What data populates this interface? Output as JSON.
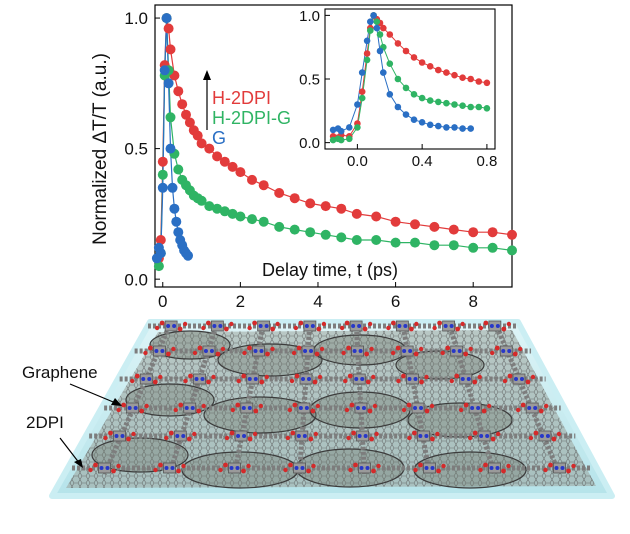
{
  "chart_data": [
    {
      "type": "scatter",
      "title": "",
      "xlabel": "Delay time, t (ps)",
      "ylabel": "Normalized ΔT/T (a.u.)",
      "xlim": [
        -0.2,
        9
      ],
      "ylim": [
        -0.03,
        1.05
      ],
      "xticks": [
        "0",
        "2",
        "4",
        "6",
        "8"
      ],
      "yticks": [
        "0.0",
        "0.5",
        "1.0"
      ],
      "legend": [
        "H-2DPI",
        "H-2DPI-G",
        "G"
      ],
      "legend_placement": "top-left, with upward arrow",
      "grid": false,
      "colors": {
        "H-2DPI": "#e23b3b",
        "H-2DPI-G": "#2fb464",
        "G": "#2a6fc4"
      },
      "series": [
        {
          "name": "H-2DPI",
          "color": "#e23b3b",
          "x": [
            -0.1,
            -0.05,
            0.0,
            0.05,
            0.1,
            0.15,
            0.2,
            0.3,
            0.4,
            0.5,
            0.6,
            0.7,
            0.8,
            0.9,
            1.0,
            1.2,
            1.4,
            1.6,
            1.8,
            2.0,
            2.3,
            2.6,
            3.0,
            3.4,
            3.8,
            4.2,
            4.6,
            5.0,
            5.5,
            6.0,
            6.5,
            7.0,
            7.5,
            8.0,
            8.5,
            9.0
          ],
          "y": [
            0.08,
            0.15,
            0.45,
            0.82,
            1.0,
            0.96,
            0.88,
            0.78,
            0.72,
            0.67,
            0.63,
            0.6,
            0.57,
            0.55,
            0.52,
            0.5,
            0.47,
            0.45,
            0.43,
            0.41,
            0.38,
            0.36,
            0.33,
            0.31,
            0.29,
            0.28,
            0.27,
            0.25,
            0.24,
            0.22,
            0.21,
            0.2,
            0.19,
            0.18,
            0.18,
            0.17
          ]
        },
        {
          "name": "H-2DPI-G",
          "color": "#2fb464",
          "x": [
            -0.1,
            -0.05,
            0.0,
            0.05,
            0.1,
            0.15,
            0.2,
            0.3,
            0.4,
            0.5,
            0.6,
            0.7,
            0.8,
            0.9,
            1.0,
            1.2,
            1.4,
            1.6,
            1.8,
            2.0,
            2.3,
            2.6,
            3.0,
            3.4,
            3.8,
            4.2,
            4.6,
            5.0,
            5.5,
            6.0,
            6.5,
            7.0,
            7.5,
            8.0,
            8.5,
            9.0
          ],
          "y": [
            0.05,
            0.1,
            0.4,
            0.78,
            1.0,
            0.8,
            0.62,
            0.48,
            0.42,
            0.38,
            0.36,
            0.34,
            0.32,
            0.31,
            0.3,
            0.28,
            0.27,
            0.26,
            0.25,
            0.24,
            0.23,
            0.22,
            0.2,
            0.19,
            0.18,
            0.17,
            0.16,
            0.15,
            0.15,
            0.14,
            0.14,
            0.13,
            0.13,
            0.12,
            0.12,
            0.11
          ]
        },
        {
          "name": "G",
          "color": "#2a6fc4",
          "x": [
            -0.15,
            -0.1,
            -0.05,
            0.0,
            0.05,
            0.1,
            0.15,
            0.2,
            0.25,
            0.3,
            0.35,
            0.4,
            0.45,
            0.5,
            0.55,
            0.6,
            0.65
          ],
          "y": [
            0.08,
            0.12,
            0.1,
            0.35,
            0.8,
            1.0,
            0.75,
            0.5,
            0.35,
            0.27,
            0.22,
            0.18,
            0.15,
            0.13,
            0.11,
            0.1,
            0.09
          ]
        }
      ]
    },
    {
      "type": "scatter",
      "title": "",
      "xlabel": "",
      "ylabel": "",
      "xlim": [
        -0.2,
        0.85
      ],
      "ylim": [
        -0.05,
        1.05
      ],
      "xticks": [
        "0.0",
        "0.4",
        "0.8"
      ],
      "yticks": [
        "0.0",
        "0.5",
        "1.0"
      ],
      "grid": false,
      "series": [
        {
          "name": "H-2DPI",
          "color": "#e23b3b",
          "x": [
            -0.15,
            -0.12,
            -0.1,
            -0.05,
            0.0,
            0.03,
            0.06,
            0.08,
            0.1,
            0.12,
            0.14,
            0.16,
            0.2,
            0.25,
            0.3,
            0.35,
            0.4,
            0.45,
            0.5,
            0.55,
            0.6,
            0.65,
            0.7,
            0.75,
            0.8
          ],
          "y": [
            0.05,
            0.04,
            0.06,
            0.05,
            0.15,
            0.4,
            0.7,
            0.9,
            1.0,
            0.97,
            0.94,
            0.9,
            0.85,
            0.78,
            0.72,
            0.67,
            0.63,
            0.6,
            0.57,
            0.55,
            0.53,
            0.51,
            0.5,
            0.48,
            0.47
          ]
        },
        {
          "name": "H-2DPI-G",
          "color": "#2fb464",
          "x": [
            -0.15,
            -0.12,
            -0.1,
            -0.05,
            0.0,
            0.03,
            0.06,
            0.08,
            0.1,
            0.12,
            0.14,
            0.16,
            0.2,
            0.25,
            0.3,
            0.35,
            0.4,
            0.45,
            0.5,
            0.55,
            0.6,
            0.65,
            0.7,
            0.75,
            0.8
          ],
          "y": [
            0.02,
            0.03,
            0.02,
            0.03,
            0.12,
            0.35,
            0.65,
            0.88,
            1.0,
            0.95,
            0.85,
            0.75,
            0.62,
            0.5,
            0.43,
            0.38,
            0.35,
            0.33,
            0.32,
            0.31,
            0.3,
            0.29,
            0.28,
            0.28,
            0.27
          ]
        },
        {
          "name": "G",
          "color": "#2a6fc4",
          "x": [
            -0.15,
            -0.12,
            -0.1,
            -0.05,
            0.0,
            0.03,
            0.06,
            0.08,
            0.1,
            0.12,
            0.14,
            0.16,
            0.2,
            0.25,
            0.3,
            0.35,
            0.4,
            0.45,
            0.5,
            0.55,
            0.6,
            0.65,
            0.7
          ],
          "y": [
            0.1,
            0.11,
            0.09,
            0.12,
            0.3,
            0.55,
            0.8,
            0.95,
            1.0,
            0.9,
            0.72,
            0.55,
            0.38,
            0.28,
            0.22,
            0.18,
            0.16,
            0.14,
            0.13,
            0.12,
            0.12,
            0.11,
            0.11
          ]
        }
      ]
    }
  ],
  "diagram": {
    "labels": [
      "Graphene",
      "2DPI"
    ],
    "colors": {
      "slab": "#bfe8ee",
      "lattice_node": "#888888",
      "oxygen": "#d42a2a",
      "nitrogen": "#2838c8",
      "graphene_fill": "#8f9a8a"
    }
  }
}
